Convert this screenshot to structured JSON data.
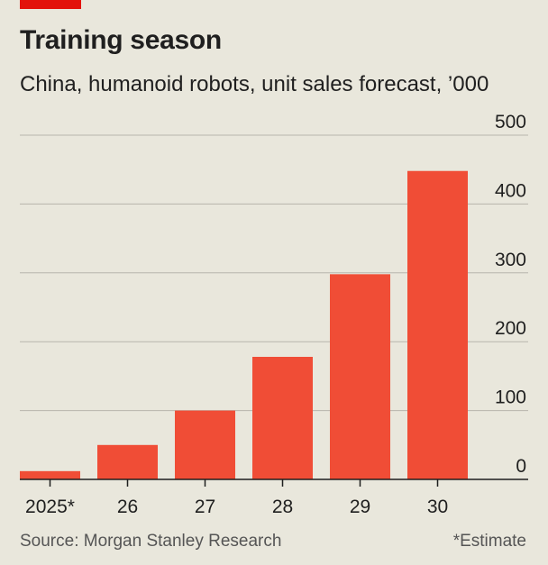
{
  "colors": {
    "accent": "#e3120b",
    "bar": "#f04d36",
    "gridline": "#b7b5ad",
    "axis": "#1f1f1f",
    "background": "#e9e7dc"
  },
  "header": {
    "title": "Training season",
    "subtitle": "China, humanoid robots, unit sales forecast, ’000"
  },
  "footer": {
    "source": "Source: Morgan Stanley Research",
    "note": "*Estimate"
  },
  "chart_data": {
    "type": "bar",
    "title": "Training season",
    "subtitle": "China, humanoid robots, unit sales forecast, ’000",
    "categories": [
      "2025*",
      "26",
      "27",
      "28",
      "29",
      "30"
    ],
    "values": [
      12,
      50,
      100,
      178,
      298,
      448
    ],
    "ylim": [
      0,
      500
    ],
    "yticks": [
      0,
      100,
      200,
      300,
      400,
      500
    ],
    "ytick_labels": [
      "0",
      "100",
      "200",
      "300",
      "400",
      "500"
    ],
    "xlabel": "",
    "ylabel": "",
    "grid": true,
    "y_axis_position": "right"
  }
}
